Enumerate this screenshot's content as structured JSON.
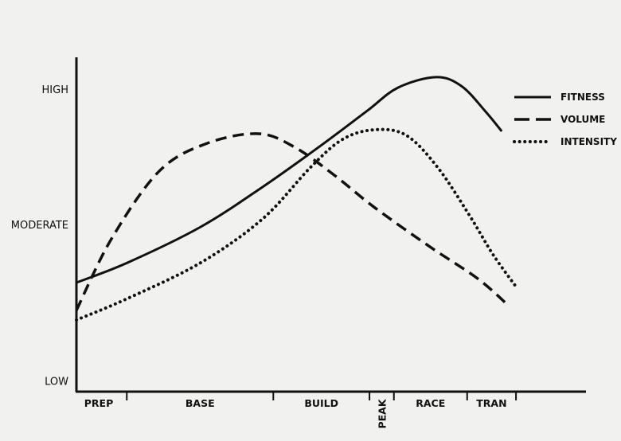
{
  "chart_data": {
    "type": "line",
    "title": "",
    "xlabel": "",
    "ylabel": "",
    "xlim": [
      0,
      100
    ],
    "ylim": [
      0,
      105
    ],
    "grid": false,
    "legend_position": "top-right",
    "y_ticks": [
      {
        "label": "HIGH",
        "value": 100
      },
      {
        "label": "MODERATE",
        "value": 55
      },
      {
        "label": "LOW",
        "value": 3
      }
    ],
    "phases": [
      {
        "label": "PREP",
        "start": 0,
        "end": 9.9,
        "vertical": false
      },
      {
        "label": "BASE",
        "start": 9.9,
        "end": 38.7,
        "vertical": false
      },
      {
        "label": "BUILD",
        "start": 38.7,
        "end": 57.6,
        "vertical": false
      },
      {
        "label": "PEAK",
        "start": 57.6,
        "end": 62.4,
        "vertical": true
      },
      {
        "label": "RACE",
        "start": 62.4,
        "end": 76.8,
        "vertical": false
      },
      {
        "label": "TRAN",
        "start": 76.8,
        "end": 86.4,
        "vertical": false
      }
    ],
    "series": [
      {
        "name": "FITNESS",
        "style": "solid",
        "x": [
          0,
          10,
          24.4,
          36.6,
          47.6,
          57,
          63.2,
          70.7,
          75.7,
          80.4,
          83.6
        ],
        "y": [
          35.7,
          42.3,
          54.2,
          67.5,
          80.7,
          92.6,
          100.5,
          104,
          101,
          92.6,
          86
        ]
      },
      {
        "name": "VOLUME",
        "style": "dashed",
        "x": [
          0,
          6.9,
          16.3,
          25.7,
          35.8,
          42.9,
          50.7,
          58.5,
          69.5,
          78.9,
          85.1
        ],
        "y": [
          26.5,
          50.3,
          72.8,
          82,
          85.2,
          80.7,
          71.4,
          60.8,
          47.6,
          37,
          27.8
        ]
      },
      {
        "name": "INTENSITY",
        "style": "dotted",
        "x": [
          0,
          10,
          24.4,
          36.6,
          46,
          52.3,
          58.5,
          64.8,
          71,
          77.2,
          81.9,
          86.6
        ],
        "y": [
          23.3,
          30.4,
          42.3,
          56.9,
          74,
          83.3,
          86.5,
          84.7,
          74,
          58.2,
          45,
          33.9
        ]
      }
    ]
  }
}
